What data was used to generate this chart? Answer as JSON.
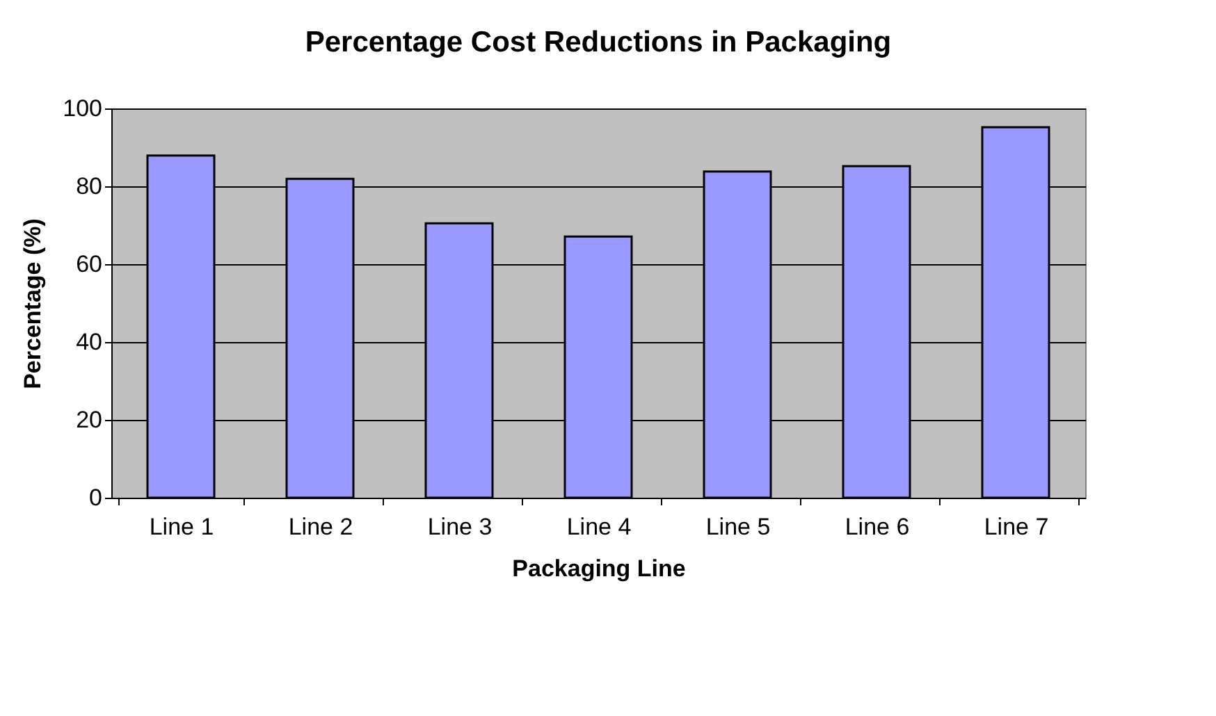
{
  "chart_data": {
    "type": "bar",
    "title": "Percentage Cost Reductions in Packaging",
    "xlabel": "Packaging Line",
    "ylabel": "Percentage (%)",
    "categories": [
      "Line 1",
      "Line 2",
      "Line 3",
      "Line 4",
      "Line 5",
      "Line 6",
      "Line 7"
    ],
    "values": [
      87.9,
      81.9,
      70.5,
      67.1,
      83.8,
      85.2,
      95.2
    ],
    "color": "#9999ff",
    "ylim": [
      0,
      100
    ],
    "yticks": [
      0,
      20,
      40,
      60,
      80,
      100
    ],
    "grid": "y"
  }
}
